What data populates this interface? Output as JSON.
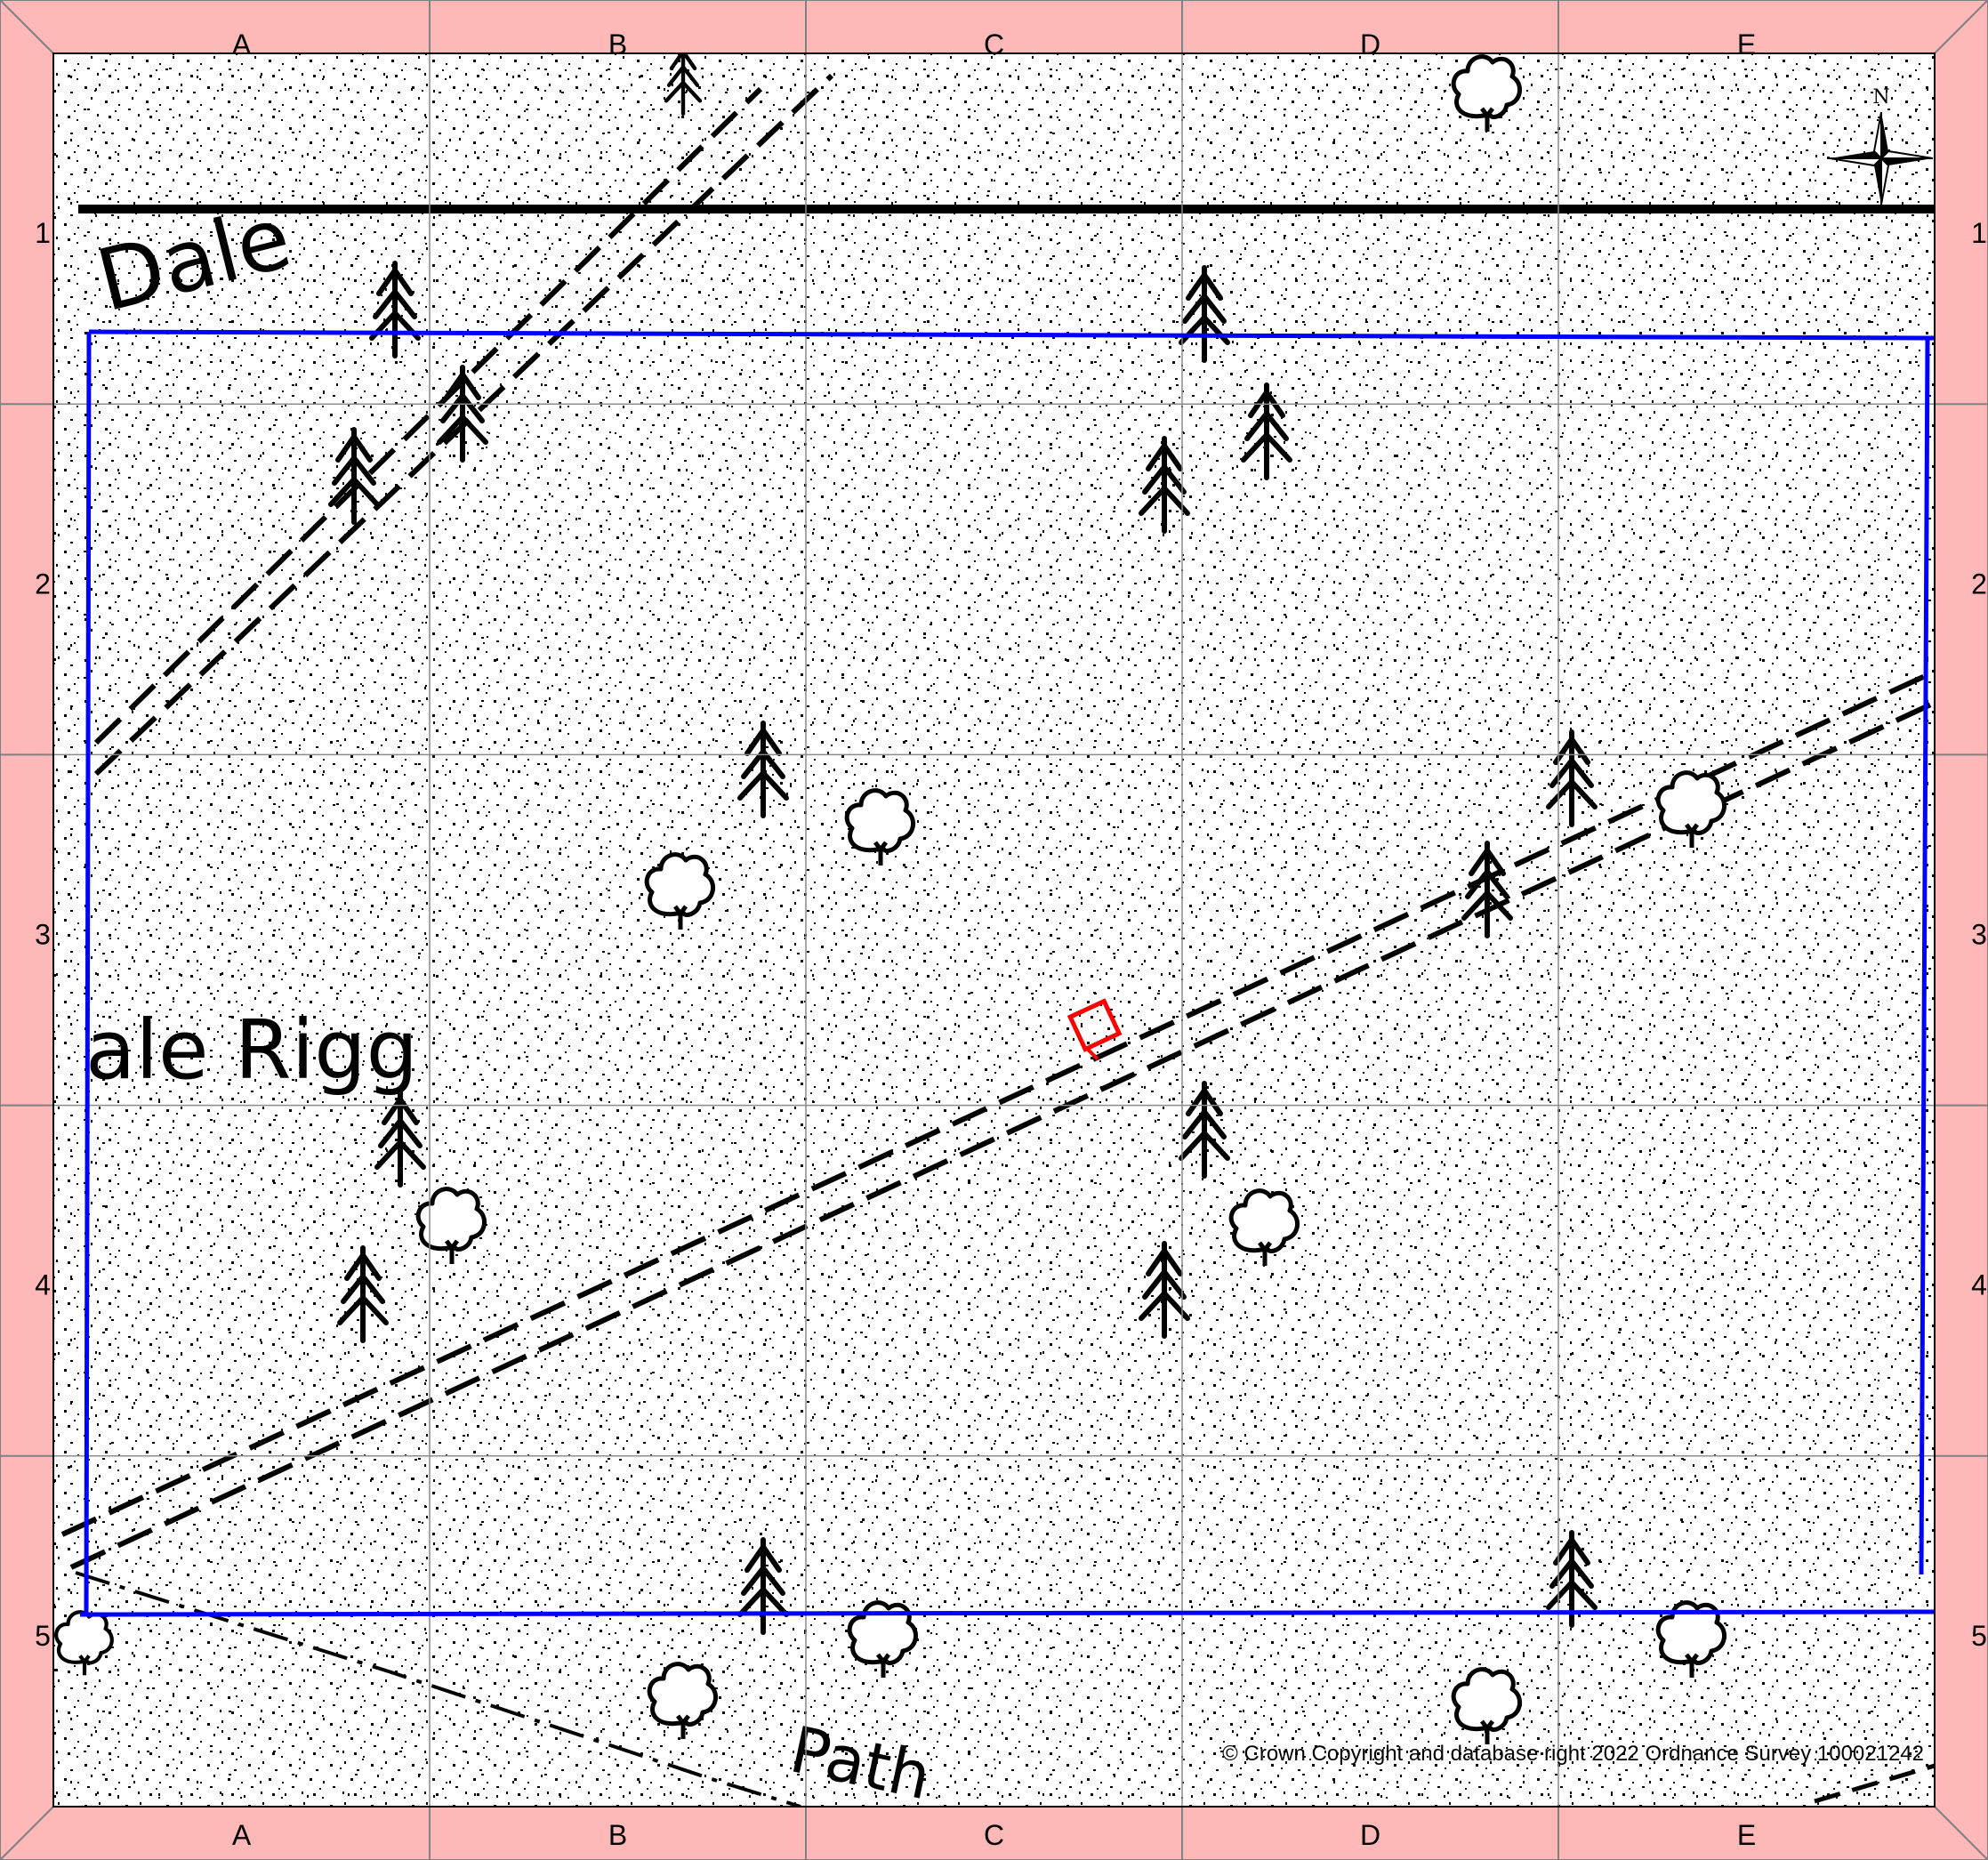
{
  "grid": {
    "columns": [
      "A",
      "B",
      "C",
      "D",
      "E"
    ],
    "rows": [
      "1",
      "2",
      "3",
      "4",
      "5"
    ]
  },
  "compass": {
    "north_label": "N"
  },
  "place_names": {
    "dale": "Dale",
    "rigg": "ale Rigg",
    "path": "Path"
  },
  "copyright": "© Crown Copyright and database right 2022 Ordnance Survey 100021242",
  "colors": {
    "border": "#ffb8b8",
    "boundary": "#0000ff",
    "marker": "#ff0000",
    "ink": "#000000",
    "grid": "#8c8c8c"
  },
  "icons": [
    "conifer-tree-icon",
    "deciduous-tree-icon",
    "compass-rose-icon",
    "location-marker-icon"
  ]
}
